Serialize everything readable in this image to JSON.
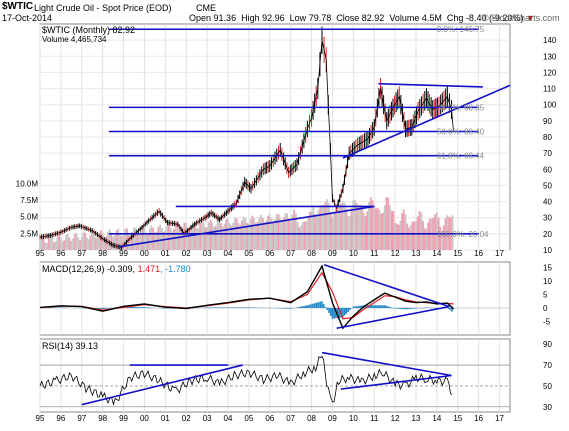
{
  "header": {
    "symbol": "$WTIC",
    "name": "Light Crude Oil - Spot Price (EOD)",
    "exchange": "CME",
    "date": "17-Oct-2014",
    "open_label": "Open",
    "open": "91.36",
    "high_label": "High",
    "high": "92.96",
    "low_label": "Low",
    "low": "79.78",
    "close_label": "Close",
    "close": "82.92",
    "volume_label": "Volume",
    "volume": "4.5M",
    "chg_label": "Chg",
    "chg": "-8.40 (-9.20%)",
    "watermark": "© StockCharts.com"
  },
  "colors": {
    "trendline": "#1010c8",
    "price": "#000000",
    "volume_up": "#c8c8c8",
    "volume_down": "#f0a0b0",
    "macd_line": "#000000",
    "signal_line": "#e02020",
    "histogram": "#1f88c8",
    "rsi_line": "#000000",
    "fib_text": "#888888",
    "chg_down": "#c00000"
  },
  "chart_data": [
    {
      "type": "line",
      "title": "$WTIC (Monthly) 82.92",
      "legend": [
        "$WTIC (Monthly) 82.92",
        "Volume 4,465,734"
      ],
      "x_ticks": [
        "95",
        "96",
        "97",
        "98",
        "99",
        "00",
        "01",
        "02",
        "03",
        "04",
        "05",
        "06",
        "07",
        "08",
        "09",
        "10",
        "11",
        "12",
        "13",
        "14",
        "15",
        "16",
        "17"
      ],
      "x_range": [
        1995.0,
        2017.5
      ],
      "y_range": [
        10,
        150
      ],
      "y_ticks": [
        10,
        20,
        30,
        40,
        50,
        60,
        70,
        80,
        90,
        100,
        110,
        120,
        130,
        140
      ],
      "volume_ticks": [
        "2.5M",
        "5.0M",
        "7.5M",
        "10.0M"
      ],
      "volume_values": [
        2500000,
        5000000,
        7500000,
        10000000
      ],
      "x": [
        1995.0,
        1995.5,
        1996.0,
        1996.5,
        1996.9,
        1997.5,
        1998.0,
        1998.5,
        1998.9,
        1999.3,
        1999.8,
        2000.2,
        2000.7,
        2001.1,
        2001.6,
        2001.9,
        2002.4,
        2002.9,
        2003.2,
        2003.6,
        2004.0,
        2004.4,
        2004.8,
        2005.1,
        2005.7,
        2006.0,
        2006.5,
        2006.9,
        2007.3,
        2007.8,
        2008.0,
        2008.3,
        2008.5,
        2008.7,
        2008.9,
        2009.0,
        2009.2,
        2009.5,
        2009.8,
        2010.2,
        2010.7,
        2011.0,
        2011.3,
        2011.6,
        2011.9,
        2012.2,
        2012.5,
        2012.8,
        2013.1,
        2013.5,
        2013.8,
        2014.1,
        2014.5,
        2014.7,
        2014.8
      ],
      "close": [
        18,
        19,
        21,
        24,
        25,
        22,
        17,
        13,
        11.5,
        17,
        23,
        28,
        34,
        27,
        26,
        20,
        26,
        30,
        33,
        29,
        34,
        39,
        52,
        48,
        60,
        62,
        72,
        58,
        63,
        85,
        92,
        110,
        140,
        128,
        72,
        42,
        36,
        48,
        70,
        75,
        79,
        86,
        110,
        90,
        98,
        105,
        85,
        86,
        96,
        104,
        97,
        99,
        105,
        97,
        83
      ],
      "series": [
        {
          "name": "Fib",
          "levels": [
            {
              "label": "0.0%: 146.75",
              "value": 146.75
            },
            {
              "label": "38.2%: 98.35",
              "value": 98.35
            },
            {
              "label": "50.0%: 83.40",
              "value": 83.4
            },
            {
              "label": "61.8%: 68.44",
              "value": 68.44
            },
            {
              "label": "100.0%: 20.04",
              "value": 20.04
            }
          ]
        }
      ],
      "trendlines": [
        {
          "x1": 1998.8,
          "y1": 12,
          "x2": 2011.0,
          "y2": 37
        },
        {
          "x1": 2009.5,
          "y1": 67,
          "x2": 2017.5,
          "y2": 112
        },
        {
          "x1": 2011.2,
          "y1": 113,
          "x2": 2016.2,
          "y2": 111
        },
        {
          "x1": 2001.5,
          "y1": 37,
          "x2": 2011.0,
          "y2": 37
        }
      ]
    },
    {
      "type": "line",
      "title": "MACD(12,26,9) -0.309, 1.471, -1.780",
      "legend_name": "MACD(12,26,9)",
      "legend_values": [
        "-0.309",
        "1.471",
        "-1.780"
      ],
      "y_range": [
        -10,
        17
      ],
      "y_ticks": [
        -5,
        0,
        5,
        10,
        15
      ],
      "x": [
        1995.0,
        1996.0,
        1997.0,
        1998.0,
        1999.0,
        2000.0,
        2001.0,
        2002.0,
        2003.0,
        2004.0,
        2005.0,
        2006.0,
        2007.0,
        2007.8,
        2008.5,
        2009.0,
        2009.5,
        2010.0,
        2010.5,
        2011.0,
        2011.5,
        2012.0,
        2012.5,
        2013.0,
        2013.5,
        2014.0,
        2014.5,
        2014.8
      ],
      "macd": [
        0.2,
        0.8,
        0.5,
        -1.2,
        0.6,
        1.5,
        0.3,
        -0.2,
        1.0,
        2.0,
        3.2,
        3.6,
        2.0,
        6.0,
        15.5,
        2.0,
        -7.5,
        -3.0,
        0.5,
        3.0,
        5.5,
        4.0,
        2.5,
        2.0,
        2.2,
        1.5,
        1.8,
        -0.3
      ],
      "signal": [
        0.1,
        0.6,
        0.6,
        -0.8,
        0.2,
        1.2,
        0.5,
        0.0,
        0.8,
        1.8,
        3.0,
        3.6,
        2.3,
        5.0,
        13.0,
        6.0,
        -4.0,
        -3.5,
        -0.5,
        2.0,
        4.5,
        4.2,
        3.0,
        2.2,
        2.0,
        1.7,
        1.7,
        1.5
      ],
      "histogram": [
        0.1,
        0.2,
        -0.1,
        -0.4,
        0.4,
        0.3,
        -0.2,
        -0.2,
        0.2,
        0.2,
        0.2,
        0.0,
        -0.3,
        1.0,
        2.5,
        -4.0,
        -3.5,
        0.5,
        1.0,
        1.0,
        1.0,
        -0.2,
        -0.5,
        -0.2,
        0.2,
        -0.2,
        0.1,
        -1.8
      ],
      "trendlines": [
        {
          "x1": 2008.6,
          "y1": 16,
          "x2": 2014.6,
          "y2": 0.5
        },
        {
          "x1": 2009.2,
          "y1": -7.5,
          "x2": 2014.6,
          "y2": 0.5
        }
      ]
    },
    {
      "type": "line",
      "title": "RSI(14) 39.13",
      "legend_name": "RSI(14)",
      "legend_value": "39.13",
      "y_range": [
        25,
        95
      ],
      "y_ticks": [
        30,
        50,
        70,
        90
      ],
      "levels": [
        70,
        30
      ],
      "x": [
        1995.0,
        1995.8,
        1996.5,
        1997.2,
        1998.0,
        1998.6,
        1999.3,
        2000.0,
        2000.7,
        2001.5,
        2002.2,
        2003.0,
        2003.6,
        2004.3,
        2005.0,
        2005.7,
        2006.4,
        2007.0,
        2007.6,
        2008.2,
        2008.5,
        2008.8,
        2009.0,
        2009.3,
        2009.8,
        2010.4,
        2011.0,
        2011.4,
        2012.0,
        2012.5,
        2013.0,
        2013.5,
        2014.0,
        2014.5,
        2014.8
      ],
      "rsi": [
        50,
        55,
        60,
        48,
        40,
        34,
        58,
        62,
        55,
        45,
        55,
        58,
        52,
        60,
        63,
        56,
        60,
        52,
        62,
        68,
        80,
        45,
        33,
        55,
        58,
        54,
        60,
        63,
        52,
        50,
        58,
        57,
        55,
        54,
        39
      ],
      "trendlines": [
        {
          "x1": 1997.0,
          "y1": 32,
          "x2": 2004.7,
          "y2": 70
        },
        {
          "x1": 1999.3,
          "y1": 70,
          "x2": 2004.0,
          "y2": 70
        },
        {
          "x1": 2008.5,
          "y1": 82,
          "x2": 2014.7,
          "y2": 60
        },
        {
          "x1": 2009.4,
          "y1": 47,
          "x2": 2014.7,
          "y2": 60
        }
      ]
    }
  ]
}
